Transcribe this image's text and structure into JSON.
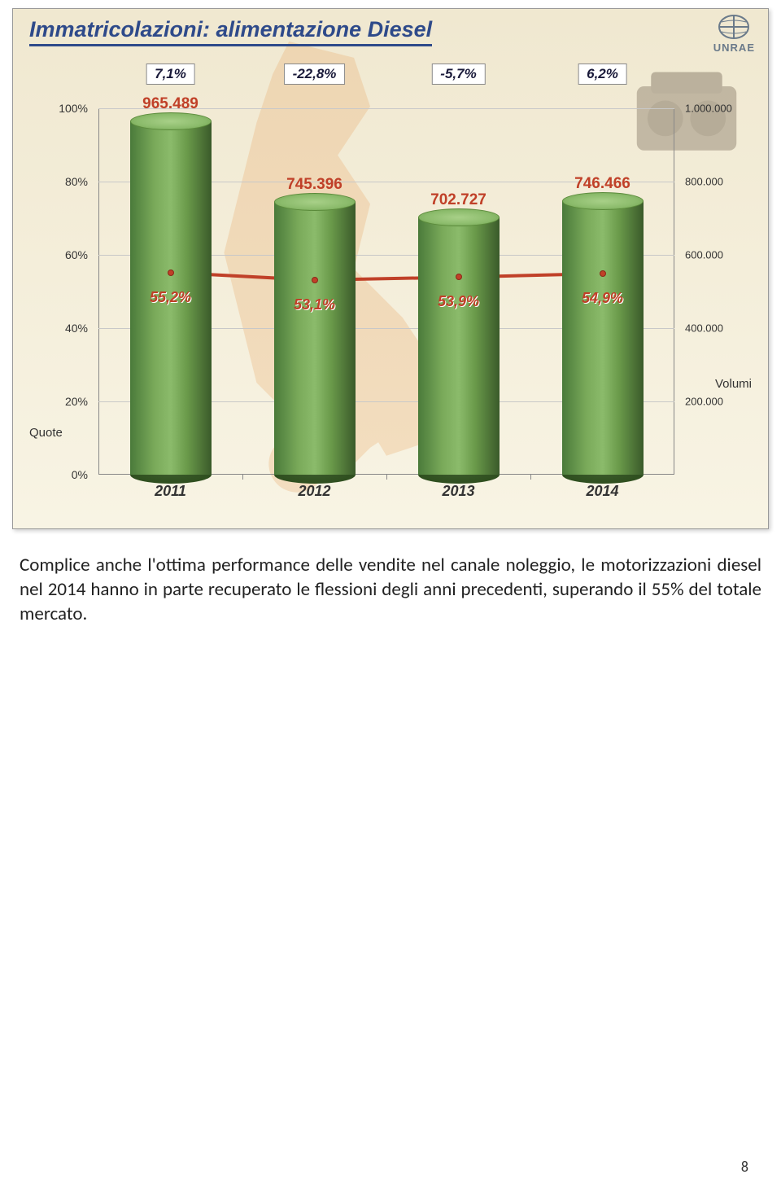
{
  "chart": {
    "title": "Immatricolazioni: alimentazione Diesel",
    "type": "bar",
    "logo_text": "UNRAE",
    "x_labels": [
      "2011",
      "2012",
      "2013",
      "2014"
    ],
    "left_axis": {
      "label": "Quote",
      "ticks": [
        "0%",
        "20%",
        "40%",
        "60%",
        "80%",
        "100%"
      ],
      "min": 0,
      "max": 100
    },
    "right_axis": {
      "label": "Volumi",
      "ticks": [
        "200.000",
        "400.000",
        "600.000",
        "800.000",
        "1.000.000"
      ],
      "min": 0,
      "max": 1000000
    },
    "bar_values_raw": [
      965489,
      745396,
      702727,
      746466
    ],
    "bar_value_labels": [
      "965.489",
      "745.396",
      "702.727",
      "746.466"
    ],
    "bar_heights_pct": [
      96.5,
      74.5,
      70.3,
      74.6
    ],
    "change_labels": [
      "7,1%",
      "-22,8%",
      "-5,7%",
      "6,2%"
    ],
    "quote_values": [
      55.2,
      53.1,
      53.9,
      54.9
    ],
    "quote_labels": [
      "55,2%",
      "53,1%",
      "53,9%",
      "54,9%"
    ],
    "bar_colors": {
      "fill": "#7aaa5a",
      "dark": "#4a7a3a",
      "light": "#a8d088"
    },
    "trend_color": "#c04028",
    "background_gradient": [
      "#f0e8d0",
      "#f8f4e4"
    ],
    "title_color": "#2e4a8a",
    "grid_color": "#c8c8c8"
  },
  "body_text": "Complice anche l'ottima performance delle vendite nel canale noleggio, le motorizzazioni diesel nel 2014 hanno in parte recuperato le flessioni degli anni precedenti, superando il 55% del totale mercato.",
  "page_number": "8"
}
